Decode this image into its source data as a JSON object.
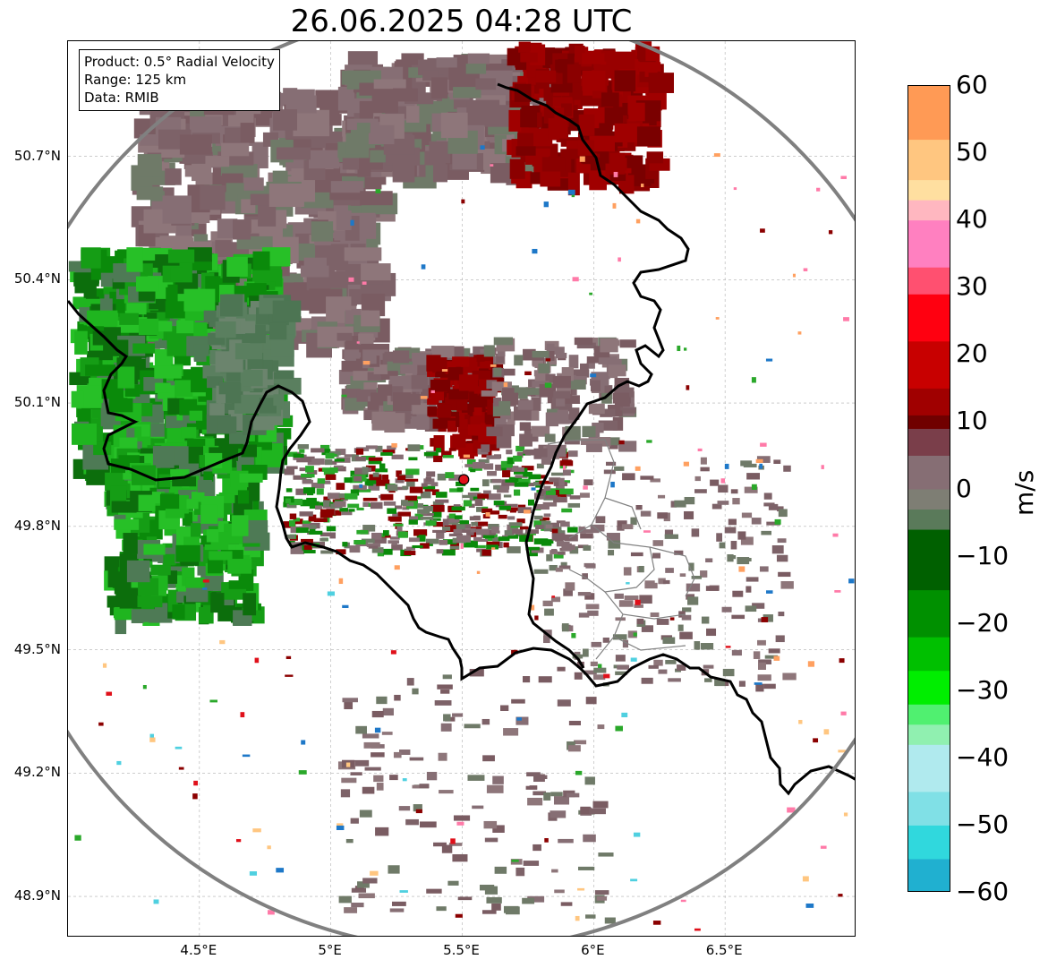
{
  "title": "26.06.2025 04:28 UTC",
  "info_box": {
    "product": "Product: 0.5° Radial Velocity",
    "range": "Range: 125 km",
    "source": "Data: RMIB"
  },
  "axes": {
    "lat_labels": [
      "50.7°N",
      "50.4°N",
      "50.1°N",
      "49.8°N",
      "49.5°N",
      "49.2°N",
      "48.9°N"
    ],
    "lon_labels": [
      "4.5°E",
      "5°E",
      "5.5°E",
      "6°E",
      "6.5°E"
    ],
    "lat_values": [
      50.7,
      50.4,
      50.1,
      49.8,
      49.5,
      49.2,
      48.9
    ],
    "lon_values": [
      4.5,
      5.0,
      5.5,
      6.0,
      6.5
    ],
    "lon_range": [
      4.0,
      7.0
    ],
    "lat_range": [
      48.8,
      50.98
    ],
    "grid": true
  },
  "radar_site": {
    "lon": 5.506,
    "lat": 49.914,
    "range_km": 125
  },
  "colorbar": {
    "label": "m/s",
    "min": -60,
    "max": 60,
    "tick_labels": [
      "60",
      "50",
      "40",
      "30",
      "20",
      "10",
      "0",
      "−10",
      "−20",
      "−30",
      "−40",
      "−50",
      "−60"
    ],
    "tick_values": [
      60,
      50,
      40,
      30,
      20,
      10,
      0,
      -10,
      -20,
      -30,
      -40,
      -50,
      -60
    ]
  },
  "colors": {
    "range_ring": "#808080",
    "border": "#000000",
    "inner_border": "#808080",
    "grid": "#b0b0b0",
    "site_marker": "#e0101a",
    "inbound_green": "#2aa82a",
    "outbound_red": "#8b0000",
    "near_zero": "#876c74"
  }
}
